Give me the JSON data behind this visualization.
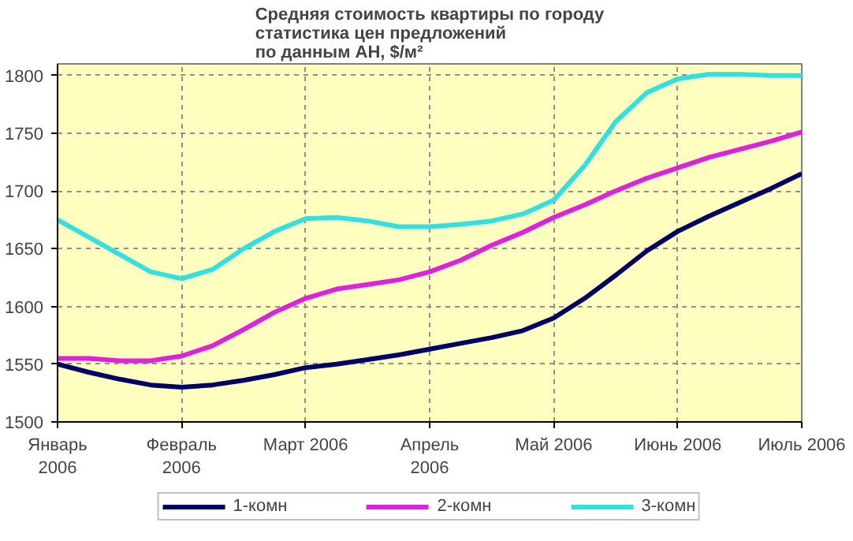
{
  "chart_data": {
    "type": "line",
    "title": "Средняя стоимость квартиры по городу\nстатистика цен предложений\nпо данным АН, $/м²",
    "categories": [
      "Январь\n2006",
      null,
      null,
      null,
      "Февраль\n2006",
      null,
      null,
      null,
      "Март 2006",
      null,
      null,
      null,
      "Апрель\n2006",
      null,
      null,
      null,
      "Май 2006",
      null,
      null,
      null,
      "Июнь 2006",
      null,
      null,
      null,
      "Июль 2006"
    ],
    "ylim": [
      1500,
      1810
    ],
    "yticks": [
      1500,
      1550,
      1600,
      1650,
      1700,
      1750,
      1800
    ],
    "grid": true,
    "legend": "bottom",
    "line_style": "solid",
    "series": [
      {
        "name": "1-комн",
        "color": "#000066",
        "values": [
          1550,
          1543,
          1537,
          1532,
          1530,
          1532,
          1536,
          1541,
          1547,
          1550,
          1554,
          1558,
          1563,
          1568,
          1573,
          1579,
          1590,
          1607,
          1627,
          1648,
          1665,
          1678,
          1690,
          1702,
          1715
        ]
      },
      {
        "name": "2-комн",
        "color": "#e020e0",
        "values": [
          1555,
          1555,
          1553,
          1553,
          1557,
          1566,
          1580,
          1595,
          1607,
          1615,
          1619,
          1623,
          1630,
          1640,
          1653,
          1664,
          1677,
          1688,
          1700,
          1711,
          1720,
          1729,
          1736,
          1743,
          1751
        ]
      },
      {
        "name": "3-комн",
        "color": "#33e0e0",
        "values": [
          1675,
          1660,
          1645,
          1630,
          1624,
          1632,
          1650,
          1665,
          1676,
          1677,
          1674,
          1669,
          1669,
          1671,
          1674,
          1680,
          1692,
          1722,
          1760,
          1785,
          1797,
          1801,
          1801,
          1800,
          1800
        ]
      }
    ]
  }
}
